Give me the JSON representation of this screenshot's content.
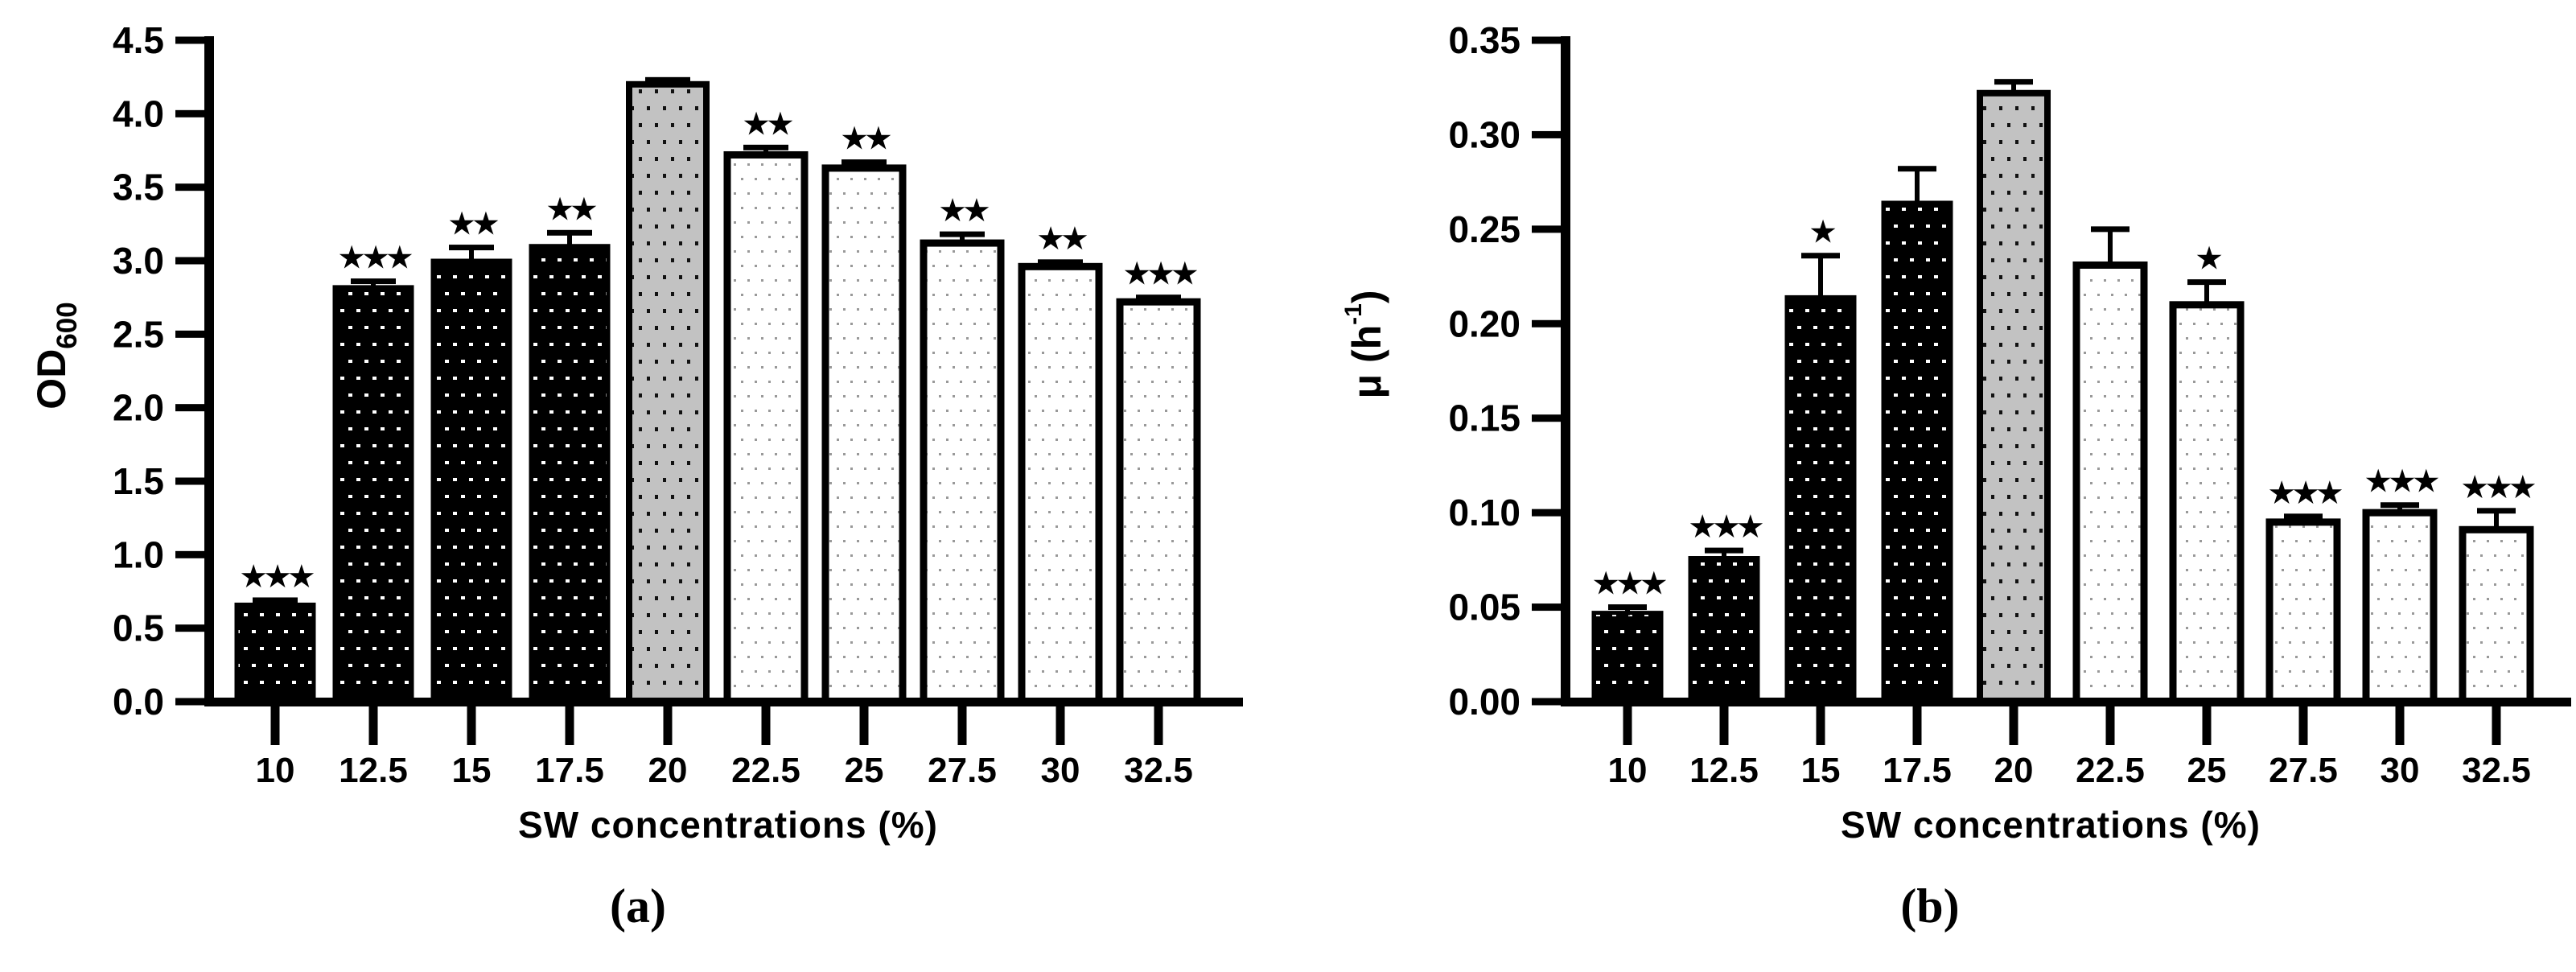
{
  "figure": {
    "description": "Two-panel bar figure: effect of SW concentrations on growth",
    "background_color": "#ffffff",
    "panel_labels": [
      "(a)",
      "(b)"
    ]
  },
  "chart_data": [
    {
      "type": "bar",
      "panel_label": "(a)",
      "title": "",
      "xlabel": "SW concentrations (%)",
      "ylabel": "OD600",
      "ylabel_parts": {
        "main": "OD",
        "sub": "600"
      },
      "categories": [
        "10",
        "12.5",
        "15",
        "17.5",
        "20",
        "22.5",
        "25",
        "27.5",
        "30",
        "32.5"
      ],
      "values": [
        0.66,
        2.82,
        3.0,
        3.1,
        4.2,
        3.72,
        3.63,
        3.12,
        2.96,
        2.72
      ],
      "errors": [
        0.03,
        0.04,
        0.09,
        0.09,
        0.03,
        0.05,
        0.04,
        0.06,
        0.03,
        0.03
      ],
      "error_direction": "up",
      "significance": [
        "***",
        "***",
        "**",
        "**",
        "",
        "**",
        "**",
        "**",
        "**",
        "***"
      ],
      "bar_styles": [
        "black-dots",
        "black-dots",
        "black-dots",
        "black-dots",
        "gray-dots",
        "white-dots",
        "white-dots",
        "white-dots",
        "white-dots",
        "white-dots"
      ],
      "ylim": [
        0,
        4.5
      ],
      "ytick_step": 0.5,
      "yticks": [
        "0.0",
        "0.5",
        "1.0",
        "1.5",
        "2.0",
        "2.5",
        "3.0",
        "3.5",
        "4.0",
        "4.5"
      ],
      "grid": false,
      "legend": "none"
    },
    {
      "type": "bar",
      "panel_label": "(b)",
      "title": "",
      "xlabel": "SW concentrations (%)",
      "ylabel": "μ (h-1)",
      "ylabel_parts": {
        "main": "μ (h",
        "sup": "-1",
        "close": ")"
      },
      "categories": [
        "10",
        "12.5",
        "15",
        "17.5",
        "20",
        "22.5",
        "25",
        "27.5",
        "30",
        "32.5"
      ],
      "values": [
        0.047,
        0.076,
        0.214,
        0.264,
        0.322,
        0.231,
        0.21,
        0.095,
        0.1,
        0.091
      ],
      "errors": [
        0.003,
        0.004,
        0.022,
        0.018,
        0.006,
        0.019,
        0.012,
        0.003,
        0.004,
        0.01
      ],
      "error_direction": "up",
      "significance": [
        "***",
        "***",
        "*",
        "",
        "",
        "",
        "*",
        "***",
        "***",
        "***"
      ],
      "bar_styles": [
        "black-dots",
        "black-dots",
        "black-dots",
        "black-dots",
        "gray-dots",
        "white-dots",
        "white-dots",
        "white-dots",
        "white-dots",
        "white-dots"
      ],
      "ylim": [
        0,
        0.35
      ],
      "ytick_step": 0.05,
      "yticks": [
        "0.00",
        "0.05",
        "0.10",
        "0.15",
        "0.20",
        "0.25",
        "0.30",
        "0.35"
      ],
      "grid": false,
      "legend": "none"
    }
  ],
  "styles": {
    "axis_color": "#000000",
    "text_color": "#000000",
    "bar_fill_black": "#000000",
    "bar_fill_gray": "#c2c2c2",
    "bar_fill_white": "#ffffff",
    "dot_on_black": "#ffffff",
    "dot_on_gray": "#111111",
    "dot_on_white": "#999999",
    "significance_star": "★"
  }
}
